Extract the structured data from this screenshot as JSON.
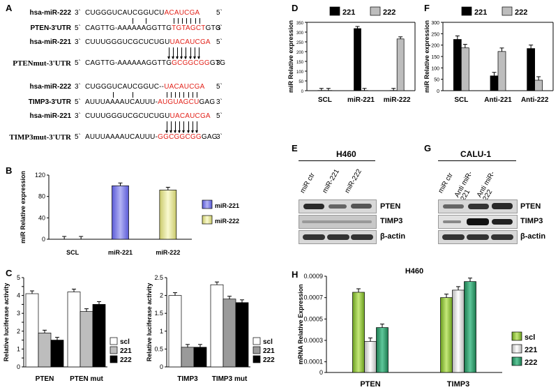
{
  "panels": {
    "A": "A",
    "B": "B",
    "C": "C",
    "D": "D",
    "E": "E",
    "F": "F",
    "G": "G",
    "H": "H"
  },
  "panelA": {
    "end5": "5`",
    "end3": "3`",
    "rows": [
      {
        "name": "hsa-miR-222",
        "left": "3`",
        "seq": "CUGGGUCAUCGGUCU",
        "red": "ACAUCGA",
        "tail": "",
        "right": "5`"
      },
      {
        "name": "PTEN-3'UTR",
        "left": "5`",
        "seq": "CAGTTG-AAAAAAGGTTG",
        "red": "TGTAGCT",
        "tail": "GTG",
        "right": "3`"
      },
      {
        "name": "hsa-miR-221",
        "left": "3`",
        "seq": "CUUUGGGUCGCUCUGU",
        "red": "UACAUCGA",
        "tail": "",
        "right": "5`"
      },
      {
        "name": "PTENmut-3'UTR",
        "left": "5`",
        "seq": "CAGTTG-AAAAAAGGTTG",
        "red": "GCGGCGG",
        "tail": "GTG",
        "right": "3`"
      },
      {
        "name": "hsa-miR-222",
        "left": "3`",
        "seq": "CUGGGUCAUCGGUC--",
        "red": "UACAUCGA",
        "tail": "",
        "right": "5`"
      },
      {
        "name": "TIMP3-3'UTR",
        "left": "5`",
        "seq": "AUUUAAAAUCAUUU-",
        "red": "AUGUAGCU",
        "tail": "GAG",
        "right": "3`"
      },
      {
        "name": "hsa-miR-221",
        "left": "3`",
        "seq": "CUUUGGGUCGCUCUGU",
        "red": "UACAUCGA",
        "tail": "",
        "right": "5`"
      },
      {
        "name": "TIMP3mut-3'UTR",
        "left": "5`",
        "seq": "AUUUAAAAUCAUUU-",
        "red": "GGCGGCGG",
        "tail": "GAG",
        "right": "3`"
      }
    ]
  },
  "panelE": {
    "title": "H460",
    "lanes": [
      "miR ctr",
      "miR-221",
      "miR-222"
    ],
    "bands": [
      "PTEN",
      "TIMP3",
      "β-actin"
    ]
  },
  "panelG": {
    "title": "CALU-1",
    "lanes": [
      "miR ctr",
      "Anti miR-221",
      "Anti miR-222"
    ],
    "bands": [
      "PTEN",
      "TIMP3",
      "β-actin"
    ]
  },
  "chart_data": [
    {
      "panel": "B",
      "type": "bar",
      "categories": [
        "SCL",
        "miR-221",
        "miR-222"
      ],
      "series": [
        {
          "name": "miR-221",
          "color": "#8080e6",
          "values": [
            0,
            100,
            null
          ]
        },
        {
          "name": "miR-222",
          "color": "#eeee99",
          "values": [
            0,
            null,
            92
          ]
        }
      ],
      "ylabel": "miR Relative expression",
      "ylim": [
        0,
        120
      ],
      "yticks": [
        0,
        40,
        80,
        120
      ],
      "legend": "right"
    },
    {
      "panel": "C1",
      "type": "bar",
      "categories": [
        "PTEN",
        "PTEN mut"
      ],
      "series": [
        {
          "name": "scl",
          "color": "#ffffff",
          "values": [
            4.1,
            4.2
          ]
        },
        {
          "name": "221",
          "color": "#bdbdbd",
          "values": [
            1.9,
            3.1
          ]
        },
        {
          "name": "222",
          "color": "#000000",
          "values": [
            1.5,
            3.5
          ]
        }
      ],
      "ylabel": "Relative luciferase activity",
      "ylim": [
        0,
        5
      ],
      "yticks": [
        0,
        0.5,
        1,
        1.5,
        2,
        2.5,
        3,
        3.5,
        4,
        4.5,
        5
      ],
      "legend": "right"
    },
    {
      "panel": "C2",
      "type": "bar",
      "categories": [
        "TIMP3",
        "TIMP3 mut"
      ],
      "series": [
        {
          "name": "scl",
          "color": "#ffffff",
          "values": [
            2.0,
            2.3
          ]
        },
        {
          "name": "221",
          "color": "#9a9a9a",
          "values": [
            0.55,
            1.9
          ]
        },
        {
          "name": "222",
          "color": "#000000",
          "values": [
            0.55,
            1.8
          ]
        }
      ],
      "ylabel": "Relative luciferase activity",
      "ylim": [
        0,
        2.5
      ],
      "yticks": [
        0,
        0.5,
        1,
        1.5,
        2,
        2.5
      ],
      "legend": "right"
    },
    {
      "panel": "D",
      "type": "bar",
      "categories": [
        "SCL",
        "miR-221",
        "miR-222"
      ],
      "series": [
        {
          "name": "221",
          "color": "#000000",
          "values": [
            1,
            318,
            1
          ]
        },
        {
          "name": "222",
          "color": "#bdbdbd",
          "values": [
            1,
            1,
            265
          ]
        }
      ],
      "ylabel": "miR Relative expression",
      "ylim": [
        0,
        350
      ],
      "yticks": [
        0,
        50,
        100,
        150,
        200,
        250,
        300,
        350
      ],
      "legend": "top"
    },
    {
      "panel": "F",
      "type": "bar",
      "categories": [
        "SCL",
        "Anti-221",
        "Anti-222"
      ],
      "series": [
        {
          "name": "221",
          "color": "#000000",
          "values": [
            225,
            65,
            185
          ]
        },
        {
          "name": "222",
          "color": "#bdbdbd",
          "values": [
            188,
            172,
            46
          ]
        }
      ],
      "ylabel": "miR Relative expression",
      "ylim": [
        0,
        300
      ],
      "yticks": [
        0,
        50,
        100,
        150,
        200,
        250,
        300
      ],
      "legend": "top"
    },
    {
      "panel": "H",
      "type": "bar",
      "title": "H460",
      "categories": [
        "PTEN",
        "TIMP3"
      ],
      "series": [
        {
          "name": "scl",
          "color": "#8cc63f",
          "values": [
            0.00075,
            0.0007
          ]
        },
        {
          "name": "221",
          "color": "#e6e6e6",
          "values": [
            0.00029,
            0.00077
          ]
        },
        {
          "name": "222",
          "color": "#2e9a6a",
          "values": [
            0.00042,
            0.00085
          ]
        }
      ],
      "ylabel": "mRNA Relative Expression",
      "ylim": [
        0,
        0.0009
      ],
      "yticks": [
        0,
        0.0001,
        0.0003,
        0.0005,
        0.0007,
        0.0009
      ],
      "legend": "right"
    }
  ]
}
